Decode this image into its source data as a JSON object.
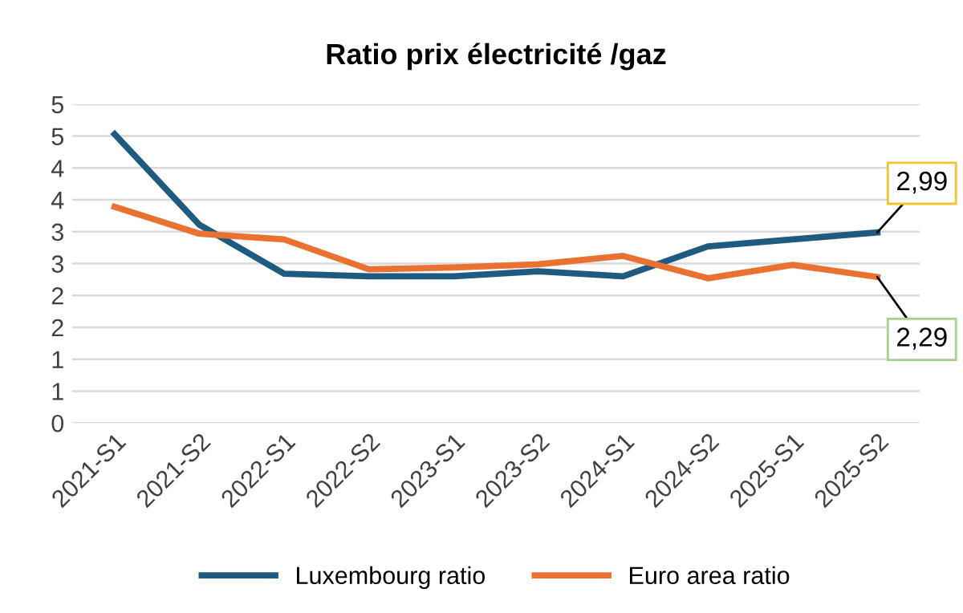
{
  "chart_data": {
    "type": "line",
    "title": "Ratio prix électricité /gaz",
    "categories": [
      "2021-S1",
      "2021-S2",
      "2022-S1",
      "2022-S2",
      "2023-S1",
      "2023-S2",
      "2024-S1",
      "2024-S2",
      "2025-S1",
      "2025-S2"
    ],
    "series": [
      {
        "name": "Luxembourg ratio",
        "color": "#1f5a80",
        "values": [
          4.53,
          3.11,
          2.34,
          2.3,
          2.3,
          2.38,
          2.3,
          2.77,
          2.88,
          2.99
        ]
      },
      {
        "name": "Euro area ratio",
        "color": "#e97132",
        "values": [
          3.39,
          2.97,
          2.88,
          2.41,
          2.44,
          2.49,
          2.62,
          2.27,
          2.48,
          2.29
        ]
      }
    ],
    "ylim": [
      0,
      5
    ],
    "yticks": [
      0,
      {
        "value": 0.5,
        "label": "1"
      },
      1,
      {
        "value": 1.5,
        "label": "2"
      },
      2,
      {
        "value": 2.5,
        "label": "3"
      },
      3,
      {
        "value": 3.5,
        "label": "4"
      },
      4,
      {
        "value": 4.5,
        "label": "5"
      },
      5
    ],
    "grid": "y",
    "legend": "bottom",
    "marker": "none",
    "line_style": "solid",
    "annotations": [
      {
        "text": "2,99",
        "x": "2025-S2",
        "y": 2.99
      },
      {
        "text": "2,29",
        "x": "2025-S2",
        "y": 2.29
      }
    ]
  }
}
